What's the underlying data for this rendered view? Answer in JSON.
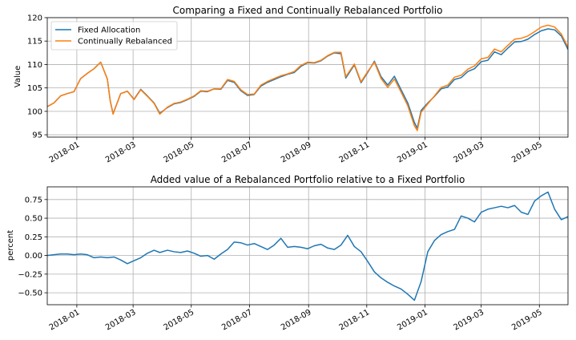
{
  "colors": {
    "fixed": "#1f77b4",
    "rebalanced": "#ff7f0e",
    "grid": "#b0b0b0",
    "axis": "#000000"
  },
  "chart_data": [
    {
      "type": "line",
      "title": "Comparing a Fixed and Continually Rebalanced Portfolio",
      "xlabel": "",
      "ylabel": "Value",
      "x_axis": "date",
      "xlim": [
        "2017-12-01",
        "2019-05-31"
      ],
      "ylim": [
        94.5,
        120.0
      ],
      "x_ticks": [
        "2018-01",
        "2018-03",
        "2018-05",
        "2018-07",
        "2018-09",
        "2018-11",
        "2019-01",
        "2019-03",
        "2019-05"
      ],
      "y_ticks": [
        95,
        100,
        105,
        110,
        115,
        120
      ],
      "grid": true,
      "legend": "top-left",
      "x": [
        "2017-12-01",
        "2017-12-08",
        "2017-12-15",
        "2017-12-22",
        "2017-12-29",
        "2018-01-05",
        "2018-01-12",
        "2018-01-19",
        "2018-01-26",
        "2018-02-02",
        "2018-02-05",
        "2018-02-08",
        "2018-02-16",
        "2018-02-23",
        "2018-03-02",
        "2018-03-09",
        "2018-03-16",
        "2018-03-23",
        "2018-03-29",
        "2018-04-06",
        "2018-04-13",
        "2018-04-20",
        "2018-04-27",
        "2018-05-04",
        "2018-05-11",
        "2018-05-18",
        "2018-05-25",
        "2018-06-01",
        "2018-06-08",
        "2018-06-15",
        "2018-06-22",
        "2018-06-29",
        "2018-07-06",
        "2018-07-13",
        "2018-07-20",
        "2018-07-27",
        "2018-08-03",
        "2018-08-10",
        "2018-08-17",
        "2018-08-24",
        "2018-08-31",
        "2018-09-07",
        "2018-09-14",
        "2018-09-21",
        "2018-09-28",
        "2018-10-05",
        "2018-10-10",
        "2018-10-19",
        "2018-10-26",
        "2018-11-02",
        "2018-11-09",
        "2018-11-16",
        "2018-11-23",
        "2018-11-30",
        "2018-12-07",
        "2018-12-14",
        "2018-12-21",
        "2018-12-24",
        "2018-12-28",
        "2019-01-04",
        "2019-01-11",
        "2019-01-18",
        "2019-01-25",
        "2019-02-01",
        "2019-02-08",
        "2019-02-15",
        "2019-02-22",
        "2019-03-01",
        "2019-03-08",
        "2019-03-15",
        "2019-03-22",
        "2019-03-29",
        "2019-04-05",
        "2019-04-12",
        "2019-04-19",
        "2019-04-26",
        "2019-05-03",
        "2019-05-10",
        "2019-05-17",
        "2019-05-24",
        "2019-05-31"
      ],
      "series": [
        {
          "name": "Fixed Allocation",
          "color": "#1f77b4",
          "values": [
            101.0,
            101.8,
            103.3,
            103.8,
            104.2,
            107.0,
            108.1,
            109.1,
            110.5,
            106.9,
            102.3,
            99.5,
            103.8,
            104.3,
            102.6,
            104.7,
            103.3,
            101.8,
            99.6,
            100.8,
            101.6,
            101.9,
            102.5,
            103.2,
            104.3,
            104.2,
            104.8,
            104.7,
            106.6,
            106.2,
            104.4,
            103.4,
            103.6,
            105.4,
            106.2,
            106.8,
            107.4,
            107.9,
            108.3,
            109.6,
            110.4,
            110.3,
            110.8,
            111.8,
            112.5,
            112.3,
            107.1,
            109.9,
            106.1,
            108.3,
            110.7,
            107.4,
            105.6,
            107.5,
            104.6,
            101.8,
            97.6,
            96.4,
            100.2,
            101.8,
            103.2,
            104.8,
            105.2,
            106.8,
            107.2,
            108.5,
            109.1,
            110.6,
            110.9,
            112.7,
            112.1,
            113.5,
            114.8,
            114.9,
            115.4,
            116.4,
            117.2,
            117.6,
            117.4,
            116.1,
            113.2
          ]
        },
        {
          "name": "Continually Rebalanced",
          "color": "#ff7f0e",
          "values": [
            101.0,
            101.8,
            103.3,
            103.8,
            104.2,
            107.0,
            108.1,
            109.1,
            110.5,
            106.9,
            102.2,
            99.4,
            103.8,
            104.3,
            102.5,
            104.6,
            103.2,
            101.7,
            99.4,
            100.9,
            101.7,
            102.0,
            102.6,
            103.3,
            104.4,
            104.3,
            104.8,
            104.8,
            106.8,
            106.4,
            104.6,
            103.6,
            103.7,
            105.6,
            106.4,
            107.0,
            107.6,
            108.0,
            108.5,
            109.8,
            110.5,
            110.4,
            110.9,
            111.9,
            112.6,
            112.6,
            107.4,
            110.1,
            106.3,
            108.5,
            110.5,
            107.0,
            105.1,
            106.9,
            104.1,
            101.2,
            96.9,
            95.9,
            99.8,
            101.6,
            103.3,
            105.1,
            105.6,
            107.3,
            107.7,
            109.0,
            109.7,
            111.2,
            111.5,
            113.3,
            112.7,
            114.1,
            115.4,
            115.6,
            116.1,
            117.0,
            118.0,
            118.4,
            118.0,
            116.5,
            113.7
          ]
        }
      ]
    },
    {
      "type": "line",
      "title": "Added value of a Rebalanced Portfolio relative to a Fixed Portfolio",
      "xlabel": "",
      "ylabel": "percent",
      "x_axis": "date",
      "xlim": [
        "2017-12-01",
        "2019-05-31"
      ],
      "ylim": [
        -0.66,
        0.92
      ],
      "x_ticks": [
        "2018-01",
        "2018-03",
        "2018-05",
        "2018-07",
        "2018-09",
        "2018-11",
        "2019-01",
        "2019-03",
        "2019-05"
      ],
      "y_ticks": [
        -0.5,
        -0.25,
        0.0,
        0.25,
        0.5,
        0.75
      ],
      "y_tick_labels": [
        "−0.50",
        "−0.25",
        "0.00",
        "0.25",
        "0.50",
        "0.75"
      ],
      "grid": true,
      "legend": "none",
      "x": [
        "2017-12-01",
        "2017-12-08",
        "2017-12-15",
        "2017-12-22",
        "2017-12-29",
        "2018-01-05",
        "2018-01-12",
        "2018-01-19",
        "2018-01-26",
        "2018-02-02",
        "2018-02-09",
        "2018-02-16",
        "2018-02-23",
        "2018-03-02",
        "2018-03-09",
        "2018-03-16",
        "2018-03-23",
        "2018-03-29",
        "2018-04-06",
        "2018-04-13",
        "2018-04-20",
        "2018-04-27",
        "2018-05-04",
        "2018-05-11",
        "2018-05-18",
        "2018-05-25",
        "2018-06-01",
        "2018-06-08",
        "2018-06-15",
        "2018-06-22",
        "2018-06-29",
        "2018-07-06",
        "2018-07-13",
        "2018-07-20",
        "2018-07-27",
        "2018-08-03",
        "2018-08-10",
        "2018-08-17",
        "2018-08-24",
        "2018-08-31",
        "2018-09-07",
        "2018-09-14",
        "2018-09-21",
        "2018-09-28",
        "2018-10-05",
        "2018-10-12",
        "2018-10-19",
        "2018-10-26",
        "2018-11-02",
        "2018-11-09",
        "2018-11-16",
        "2018-11-23",
        "2018-11-30",
        "2018-12-07",
        "2018-12-14",
        "2018-12-21",
        "2018-12-28",
        "2019-01-04",
        "2019-01-11",
        "2019-01-18",
        "2019-01-25",
        "2019-02-01",
        "2019-02-08",
        "2019-02-15",
        "2019-02-22",
        "2019-03-01",
        "2019-03-08",
        "2019-03-15",
        "2019-03-22",
        "2019-03-29",
        "2019-04-05",
        "2019-04-12",
        "2019-04-19",
        "2019-04-26",
        "2019-05-03",
        "2019-05-10",
        "2019-05-17",
        "2019-05-24",
        "2019-05-31"
      ],
      "series": [
        {
          "name": "Added value",
          "color": "#1f77b4",
          "values": [
            0.0,
            0.01,
            0.02,
            0.02,
            0.01,
            0.02,
            0.01,
            -0.03,
            -0.02,
            -0.03,
            -0.02,
            -0.06,
            -0.11,
            -0.07,
            -0.03,
            0.03,
            0.07,
            0.04,
            0.07,
            0.05,
            0.04,
            0.06,
            0.03,
            -0.01,
            0.0,
            -0.05,
            0.02,
            0.08,
            0.18,
            0.17,
            0.14,
            0.16,
            0.12,
            0.08,
            0.14,
            0.23,
            0.11,
            0.12,
            0.11,
            0.09,
            0.13,
            0.15,
            0.1,
            0.08,
            0.14,
            0.27,
            0.12,
            0.05,
            -0.08,
            -0.22,
            -0.3,
            -0.36,
            -0.41,
            -0.45,
            -0.52,
            -0.6,
            -0.35,
            0.05,
            0.2,
            0.28,
            0.32,
            0.35,
            0.53,
            0.5,
            0.45,
            0.58,
            0.62,
            0.64,
            0.66,
            0.64,
            0.67,
            0.58,
            0.55,
            0.73,
            0.8,
            0.85,
            0.62,
            0.48,
            0.52
          ]
        }
      ]
    }
  ]
}
